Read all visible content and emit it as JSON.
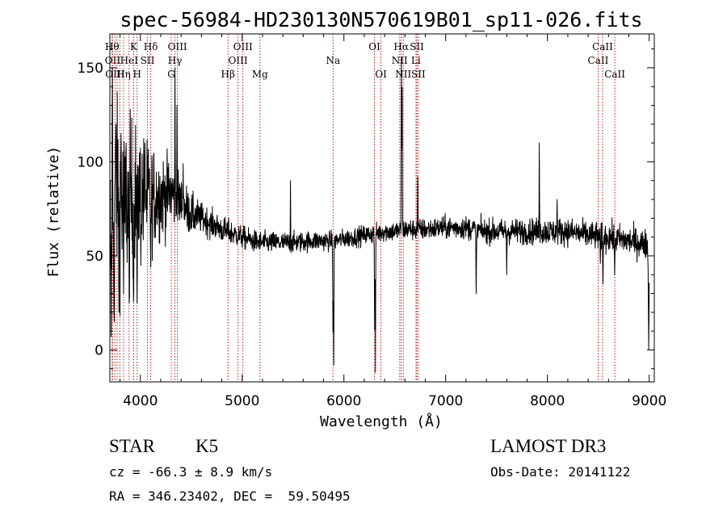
{
  "chart_data": {
    "type": "line",
    "title": "spec-56984-HD230130N570619B01_sp11-026.fits",
    "xlabel": "Wavelength (Å)",
    "ylabel": "Flux (relative)",
    "xlim": [
      3700,
      9050
    ],
    "ylim": [
      -17,
      168
    ],
    "xticks": [
      4000,
      5000,
      6000,
      7000,
      8000,
      9000
    ],
    "yticks": [
      0,
      50,
      100,
      150
    ],
    "spectrum": {
      "anchors": [
        [
          3700,
          62
        ],
        [
          3760,
          85
        ],
        [
          3850,
          72
        ],
        [
          3950,
          85
        ],
        [
          4050,
          80
        ],
        [
          4150,
          82
        ],
        [
          4250,
          82
        ],
        [
          4300,
          84
        ],
        [
          4400,
          78
        ],
        [
          4500,
          72
        ],
        [
          4600,
          70
        ],
        [
          4700,
          67
        ],
        [
          4800,
          64
        ],
        [
          4900,
          62
        ],
        [
          5000,
          60
        ],
        [
          5100,
          58
        ],
        [
          5200,
          57
        ],
        [
          5300,
          57
        ],
        [
          5500,
          57
        ],
        [
          5700,
          58
        ],
        [
          5900,
          58
        ],
        [
          6000,
          59
        ],
        [
          6100,
          60
        ],
        [
          6200,
          61
        ],
        [
          6300,
          62
        ],
        [
          6400,
          63
        ],
        [
          6500,
          63
        ],
        [
          6600,
          64
        ],
        [
          6700,
          64
        ],
        [
          6800,
          64
        ],
        [
          7000,
          65
        ],
        [
          7200,
          65
        ],
        [
          7400,
          63
        ],
        [
          7600,
          63
        ],
        [
          7800,
          63
        ],
        [
          8000,
          63
        ],
        [
          8200,
          63
        ],
        [
          8400,
          61
        ],
        [
          8600,
          60
        ],
        [
          8800,
          58
        ],
        [
          8980,
          56
        ],
        [
          9000,
          40
        ]
      ],
      "noise": [
        [
          3700,
          25
        ],
        [
          3900,
          22
        ],
        [
          4100,
          14
        ],
        [
          4350,
          8
        ],
        [
          4600,
          4
        ],
        [
          5000,
          3
        ],
        [
          6000,
          2.5
        ],
        [
          7000,
          3
        ],
        [
          8000,
          3.5
        ],
        [
          9000,
          4
        ]
      ],
      "features": [
        {
          "x": 3712,
          "y": 2,
          "w": 5,
          "mode": "set"
        },
        {
          "x": 3725,
          "y": 150,
          "w": 4,
          "mode": "set"
        },
        {
          "x": 3742,
          "y": 5,
          "w": 5,
          "mode": "set"
        },
        {
          "x": 3760,
          "y": 120,
          "w": 5,
          "mode": "set"
        },
        {
          "x": 3790,
          "y": 20,
          "w": 5,
          "mode": "set"
        },
        {
          "x": 3810,
          "y": 115,
          "w": 5,
          "mode": "set"
        },
        {
          "x": 3835,
          "y": 30,
          "w": 5,
          "mode": "set"
        },
        {
          "x": 3860,
          "y": 110,
          "w": 5,
          "mode": "set"
        },
        {
          "x": 3890,
          "y": 25,
          "w": 5,
          "mode": "set"
        },
        {
          "x": 3933,
          "y": 20,
          "w": 6,
          "mode": "set"
        },
        {
          "x": 3968,
          "y": 18,
          "w": 6,
          "mode": "set"
        },
        {
          "x": 4005,
          "y": 45,
          "w": 5,
          "mode": "set"
        },
        {
          "x": 4045,
          "y": 110,
          "w": 4,
          "mode": "set"
        },
        {
          "x": 4102,
          "y": 40,
          "w": 6,
          "mode": "set"
        },
        {
          "x": 4340,
          "y": 150,
          "w": 4,
          "mode": "set"
        },
        {
          "x": 4360,
          "y": 130,
          "w": 4,
          "mode": "set"
        },
        {
          "x": 4420,
          "y": 99,
          "w": 5,
          "mode": "set"
        },
        {
          "x": 5475,
          "y": 90,
          "w": 4,
          "mode": "set"
        },
        {
          "x": 5893,
          "y": 5,
          "w": 6,
          "mode": "set"
        },
        {
          "x": 5900,
          "y": -8,
          "w": 4,
          "mode": "set"
        },
        {
          "x": 6302,
          "y": 5,
          "w": 5,
          "mode": "set"
        },
        {
          "x": 6310,
          "y": -12,
          "w": 4,
          "mode": "set"
        },
        {
          "x": 6565,
          "y": 155,
          "w": 5,
          "mode": "set"
        },
        {
          "x": 6572,
          "y": 150,
          "w": 4,
          "mode": "set"
        },
        {
          "x": 6725,
          "y": 92,
          "w": 5,
          "mode": "set"
        },
        {
          "x": 7300,
          "y": 30,
          "w": 6,
          "mode": "set"
        },
        {
          "x": 7600,
          "y": 40,
          "w": 5,
          "mode": "set"
        },
        {
          "x": 7920,
          "y": 110,
          "w": 4,
          "mode": "set"
        },
        {
          "x": 8095,
          "y": 80,
          "w": 5,
          "mode": "set"
        },
        {
          "x": 8520,
          "y": 46,
          "w": 6,
          "mode": "set"
        },
        {
          "x": 8545,
          "y": 35,
          "w": 6,
          "mode": "set"
        },
        {
          "x": 8660,
          "y": 40,
          "w": 6,
          "mode": "set"
        },
        {
          "x": 8995,
          "y": 0,
          "w": 6,
          "mode": "set"
        }
      ]
    },
    "lines": [
      {
        "x": 3722,
        "label": "Hθ",
        "row": 1
      },
      {
        "x": 3727,
        "label": "OII",
        "row": 2
      },
      {
        "x": 3750,
        "label": "OIII",
        "row": 3
      },
      {
        "x": 3771,
        "label": "",
        "row": 0
      },
      {
        "x": 3798,
        "label": "",
        "row": 0
      },
      {
        "x": 3835,
        "label": "Hη",
        "row": 3
      },
      {
        "x": 3889,
        "label": "HeI",
        "row": 2
      },
      {
        "x": 3934,
        "label": "K",
        "row": 1
      },
      {
        "x": 3968,
        "label": "H",
        "row": 3
      },
      {
        "x": 4070,
        "label": "SII",
        "row": 2
      },
      {
        "x": 4102,
        "label": "Hδ",
        "row": 1
      },
      {
        "x": 4304,
        "label": "G",
        "row": 3
      },
      {
        "x": 4340,
        "label": "Hγ",
        "row": 2
      },
      {
        "x": 4364,
        "label": "OIII",
        "row": 1
      },
      {
        "x": 4861,
        "label": "Hβ",
        "row": 3
      },
      {
        "x": 4959,
        "label": "OIII",
        "row": 2
      },
      {
        "x": 5007,
        "label": "OIII",
        "row": 1
      },
      {
        "x": 5175,
        "label": "Mg",
        "row": 3
      },
      {
        "x": 5893,
        "label": "Na",
        "row": 2
      },
      {
        "x": 6300,
        "label": "OI",
        "row": 1
      },
      {
        "x": 6364,
        "label": "OI",
        "row": 3
      },
      {
        "x": 6548,
        "label": "NII",
        "row": 2
      },
      {
        "x": 6563,
        "label": "Hα",
        "row": 1
      },
      {
        "x": 6583,
        "label": "NII",
        "row": 3
      },
      {
        "x": 6708,
        "label": "Li",
        "row": 2
      },
      {
        "x": 6717,
        "label": "SII",
        "row": 1
      },
      {
        "x": 6731,
        "label": "SII",
        "row": 3
      },
      {
        "x": 8498,
        "label": "CaII",
        "row": 2
      },
      {
        "x": 8542,
        "label": "CaII",
        "row": 1
      },
      {
        "x": 8662,
        "label": "CaII",
        "row": 3
      }
    ]
  },
  "info": {
    "class": "STAR",
    "subclass": "K5",
    "cz": "cz = -66.3 ± 8.9 km/s",
    "coords": "RA = 346.23402, DEC =  59.50495",
    "survey": "LAMOST DR3",
    "obsdate": "Obs-Date: 20141122"
  }
}
